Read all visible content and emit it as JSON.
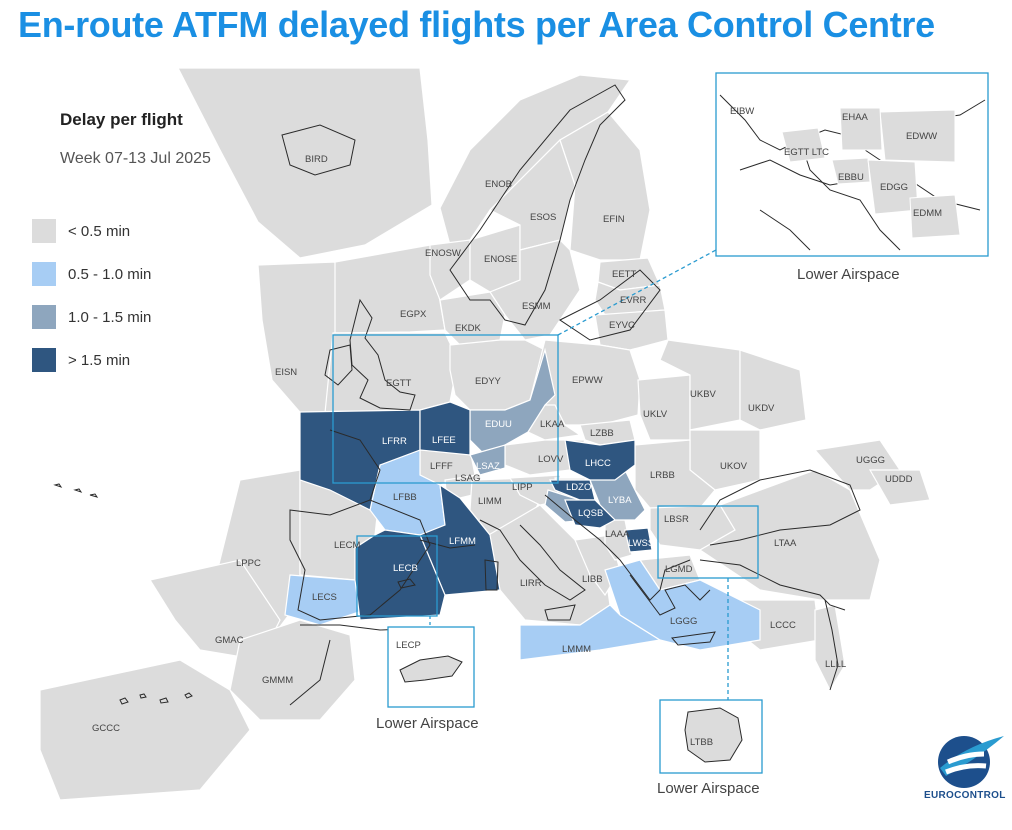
{
  "title": "En-route ATFM delayed flights per Area Control Centre",
  "legend": {
    "heading": "Delay per flight",
    "week": "Week 07-13 Jul 2025",
    "items": [
      {
        "label": "<  0.5 min",
        "color": "#dcdcdc"
      },
      {
        "label": "0.5 - 1.0 min",
        "color": "#a7cdf4"
      },
      {
        "label": "1.0 - 1.5 min",
        "color": "#8ea6be"
      },
      {
        "label": ">  1.5 min",
        "color": "#2f5680"
      }
    ]
  },
  "regions": {
    "BIRD": "BIRD",
    "ENOB": "ENOB",
    "ESOS": "ESOS",
    "EFIN": "EFIN",
    "ENOSW": "ENOSW",
    "ENOSE": "ENOSE",
    "EETT": "EETT",
    "EVRR": "EVRR",
    "EYVC": "EYVC",
    "ESMM": "ESMM",
    "EGPX": "EGPX",
    "EKDK": "EKDK",
    "EISN": "EISN",
    "EGTT": "EGTT",
    "EDYY": "EDYY",
    "EPWW": "EPWW",
    "UKBV": "UKBV",
    "UKDV": "UKDV",
    "UKLV": "UKLV",
    "EDUU": "EDUU",
    "LKAA": "LKAA",
    "LZBB": "LZBB",
    "LHCC": "LHCC",
    "UKOV": "UKOV",
    "LRBB": "LRBB",
    "LOVV": "LOVV",
    "LSAZ": "LSAZ",
    "LFRR": "LFRR",
    "LFEE": "LFEE",
    "LFFF": "LFFF",
    "LSAG": "LSAG",
    "LIMM": "LIMM",
    "LIPP": "LIPP",
    "LDZO": "LDZO",
    "LYBA": "LYBA",
    "LQSB": "LQSB",
    "LFBB": "LFBB",
    "LFMM": "LFMM",
    "LECM": "LECM",
    "LECB": "LECB",
    "LPPC": "LPPC",
    "LECS": "LECS",
    "LIRR": "LIRR",
    "LIBB": "LIBB",
    "LAAA": "LAAA",
    "LWSS": "LWSS",
    "LBSR": "LBSR",
    "LGMD": "LGMD",
    "LTAA": "LTAA",
    "UGGG": "UGGG",
    "UDDD": "UDDD",
    "LGGG": "LGGG",
    "LCCC": "LCCC",
    "LLLL": "LLLL",
    "LMMM": "LMMM",
    "GMAC": "GMAC",
    "GMMM": "GMMM",
    "GCCC": "GCCC",
    "LECP": "LECP",
    "LTBB": "LTBB",
    "EIBW": "EIBW",
    "EHAA": "EHAA",
    "EDWW": "EDWW",
    "EGTTLTC": "EGTT LTC",
    "EBBU": "EBBU",
    "EDGG": "EDGG",
    "EDMM": "EDMM"
  },
  "captions": {
    "inset_north": "Lower Airspace",
    "inset_spain": "Lower Airspace",
    "inset_turkey": "Lower Airspace"
  },
  "logo": {
    "text": "EUROCONTROL",
    "icon": "eurocontrol-logo-icon"
  },
  "colors": {
    "title": "#1a8fe3",
    "inset_frame": "#2a9bd0",
    "coast": "#2a2a2a",
    "sea": "#ffffff"
  }
}
